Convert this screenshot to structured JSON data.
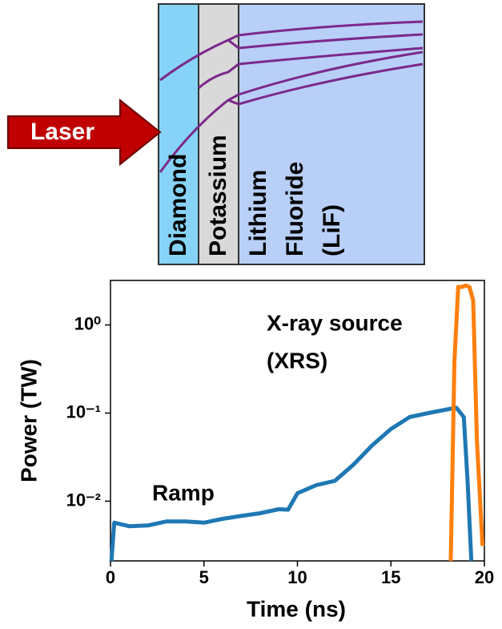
{
  "diagram": {
    "laser": "Laser",
    "layers": [
      [
        "Diamond"
      ],
      [
        "Potassium"
      ],
      [
        "Lithium",
        "Fluoride",
        "(LiF)"
      ]
    ]
  },
  "chart_data": {
    "type": "line",
    "y_scale": "log",
    "x_label": "Time (ns)",
    "y_label": "Power (TW)",
    "annotations": [
      "X-ray source",
      "(XRS)",
      "Ramp"
    ],
    "xlim": [
      0,
      20
    ],
    "xticks": [
      0,
      5,
      10,
      15,
      20
    ],
    "ylim": [
      0.0021,
      3.2
    ],
    "yticks": [
      {
        "value": 0.01,
        "label": "10⁻²"
      },
      {
        "value": 0.1,
        "label": "10⁻¹"
      },
      {
        "value": 1,
        "label": "10⁰"
      }
    ],
    "series": [
      {
        "color": "#1f77b4",
        "x": [
          0.05,
          0.2,
          1,
          2,
          3,
          4,
          5,
          6,
          7,
          8,
          9,
          9.5,
          10,
          11,
          12,
          13,
          14,
          15,
          16,
          17,
          18,
          18.5,
          18.9,
          19.1,
          19.3
        ],
        "values": [
          0.0021,
          0.0057,
          0.0052,
          0.0053,
          0.0059,
          0.0059,
          0.0057,
          0.0063,
          0.0068,
          0.0073,
          0.0081,
          0.008,
          0.0123,
          0.0152,
          0.017,
          0.026,
          0.043,
          0.066,
          0.09,
          0.1,
          0.11,
          0.115,
          0.09,
          0.017,
          0.0021
        ]
      },
      {
        "color": "#ff7f0e",
        "x": [
          18.2,
          18.4,
          18.6,
          18.8,
          19,
          19.2,
          19.4,
          19.6,
          19.9
        ],
        "values": [
          0.0021,
          0.39,
          2.7,
          2.7,
          2.8,
          2.7,
          1.9,
          0.048,
          0.0031
        ]
      }
    ]
  }
}
